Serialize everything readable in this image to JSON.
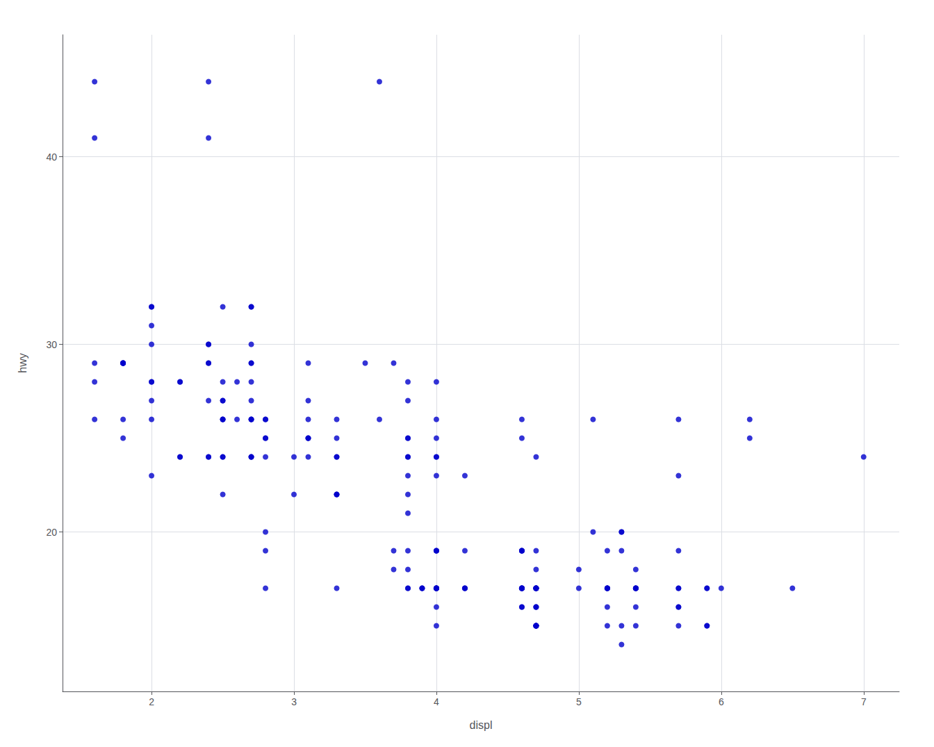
{
  "chart_data": {
    "type": "scatter",
    "x": [
      1.8,
      1.8,
      2.0,
      2.0,
      2.8,
      2.8,
      3.1,
      1.8,
      1.8,
      2.0,
      2.0,
      2.8,
      2.8,
      3.1,
      3.1,
      2.8,
      3.1,
      4.2,
      5.3,
      5.3,
      5.3,
      5.7,
      6.0,
      5.7,
      5.7,
      6.2,
      6.2,
      7.0,
      5.3,
      5.3,
      5.7,
      6.5,
      2.4,
      2.4,
      3.1,
      3.5,
      3.6,
      2.4,
      3.0,
      3.3,
      3.3,
      3.3,
      3.3,
      3.3,
      3.8,
      3.8,
      3.8,
      4.0,
      3.7,
      3.7,
      3.9,
      3.9,
      4.7,
      4.7,
      4.7,
      5.2,
      5.2,
      3.9,
      4.7,
      4.7,
      4.7,
      5.2,
      5.7,
      5.9,
      4.7,
      4.7,
      4.7,
      4.7,
      4.7,
      4.7,
      5.2,
      5.2,
      5.7,
      5.9,
      4.6,
      5.4,
      5.4,
      4.0,
      4.0,
      4.0,
      4.0,
      4.6,
      5.0,
      4.2,
      4.2,
      4.6,
      4.6,
      4.6,
      5.4,
      5.4,
      3.8,
      3.8,
      4.0,
      4.0,
      4.6,
      4.6,
      3.8,
      3.8,
      4.0,
      4.0,
      3.3,
      3.8,
      5.1,
      2.4,
      2.4,
      2.5,
      2.5,
      2.6,
      2.6,
      2.7,
      2.7,
      2.7,
      2.7,
      2.7,
      2.7,
      3.1,
      2.7,
      2.7,
      2.7,
      2.7,
      3.1,
      2.2,
      2.2,
      2.2,
      2.2,
      2.5,
      2.5,
      2.5,
      2.5,
      2.5,
      2.5,
      2.8,
      2.8,
      2.8,
      3.6,
      1.6,
      1.6,
      1.6,
      1.6,
      1.6,
      1.8,
      1.8,
      1.8,
      2.0,
      2.4,
      2.4,
      2.4,
      2.4,
      2.5,
      2.5,
      3.3,
      2.0,
      2.0,
      2.0,
      2.0,
      2.7,
      2.7,
      2.7,
      3.0,
      3.7,
      4.0,
      4.7,
      4.7,
      4.7,
      5.2,
      5.7,
      5.9,
      4.7,
      4.7,
      4.7,
      4.7,
      4.7,
      4.7,
      5.2,
      5.2,
      5.7,
      5.9,
      4.6,
      5.4,
      5.4,
      4.0,
      4.0,
      4.0,
      4.0,
      4.6,
      5.0,
      4.2,
      4.2,
      4.6,
      4.6,
      4.6,
      5.4,
      5.4,
      3.8,
      3.8,
      4.0,
      4.0,
      4.6,
      4.6,
      3.8,
      3.8,
      4.0,
      4.0,
      3.3,
      3.8,
      5.1
    ],
    "values": [
      29,
      29,
      31,
      30,
      26,
      26,
      27,
      26,
      25,
      28,
      27,
      25,
      25,
      25,
      25,
      24,
      25,
      23,
      20,
      15,
      20,
      17,
      17,
      26,
      23,
      26,
      25,
      24,
      19,
      14,
      15,
      17,
      27,
      30,
      26,
      29,
      26,
      24,
      24,
      22,
      22,
      24,
      24,
      17,
      22,
      21,
      23,
      23,
      19,
      18,
      17,
      17,
      17,
      16,
      15,
      15,
      17,
      17,
      16,
      15,
      15,
      17,
      16,
      17,
      15,
      17,
      17,
      18,
      17,
      19,
      17,
      19,
      19,
      17,
      17,
      17,
      16,
      16,
      17,
      15,
      17,
      17,
      18,
      17,
      19,
      17,
      19,
      19,
      17,
      17,
      28,
      25,
      25,
      26,
      25,
      26,
      24,
      24,
      24,
      17,
      22,
      27,
      20,
      30,
      29,
      32,
      26,
      28,
      26,
      27,
      28,
      26,
      24,
      24,
      30,
      29,
      26,
      29,
      26,
      24,
      24,
      24,
      24,
      28,
      28,
      27,
      27,
      26,
      24,
      24,
      22,
      19,
      20,
      17,
      44,
      44,
      41,
      29,
      26,
      28,
      29,
      29,
      29,
      23,
      24,
      44,
      41,
      29,
      26,
      28,
      26,
      26,
      28,
      32,
      32,
      32,
      29,
      32,
      22,
      29,
      24,
      24,
      17,
      17,
      17,
      16,
      15,
      15,
      17,
      17,
      16,
      15,
      15,
      17,
      16,
      17,
      15,
      17,
      17,
      18,
      17,
      19,
      17,
      19,
      19,
      17,
      17,
      17,
      16,
      16,
      17,
      15,
      17,
      17,
      18,
      17,
      19,
      17,
      19,
      19,
      17,
      17,
      28,
      25,
      25,
      26
    ],
    "color": "#0000CC",
    "xlabel": "displ",
    "ylabel": "hwy",
    "xlim": [
      1.375,
      7.25
    ],
    "ylim": [
      11.5,
      46.5
    ],
    "xticks": [
      2,
      3,
      4,
      5,
      6,
      7
    ],
    "yticks": [
      20,
      30,
      40
    ],
    "grid": true
  }
}
